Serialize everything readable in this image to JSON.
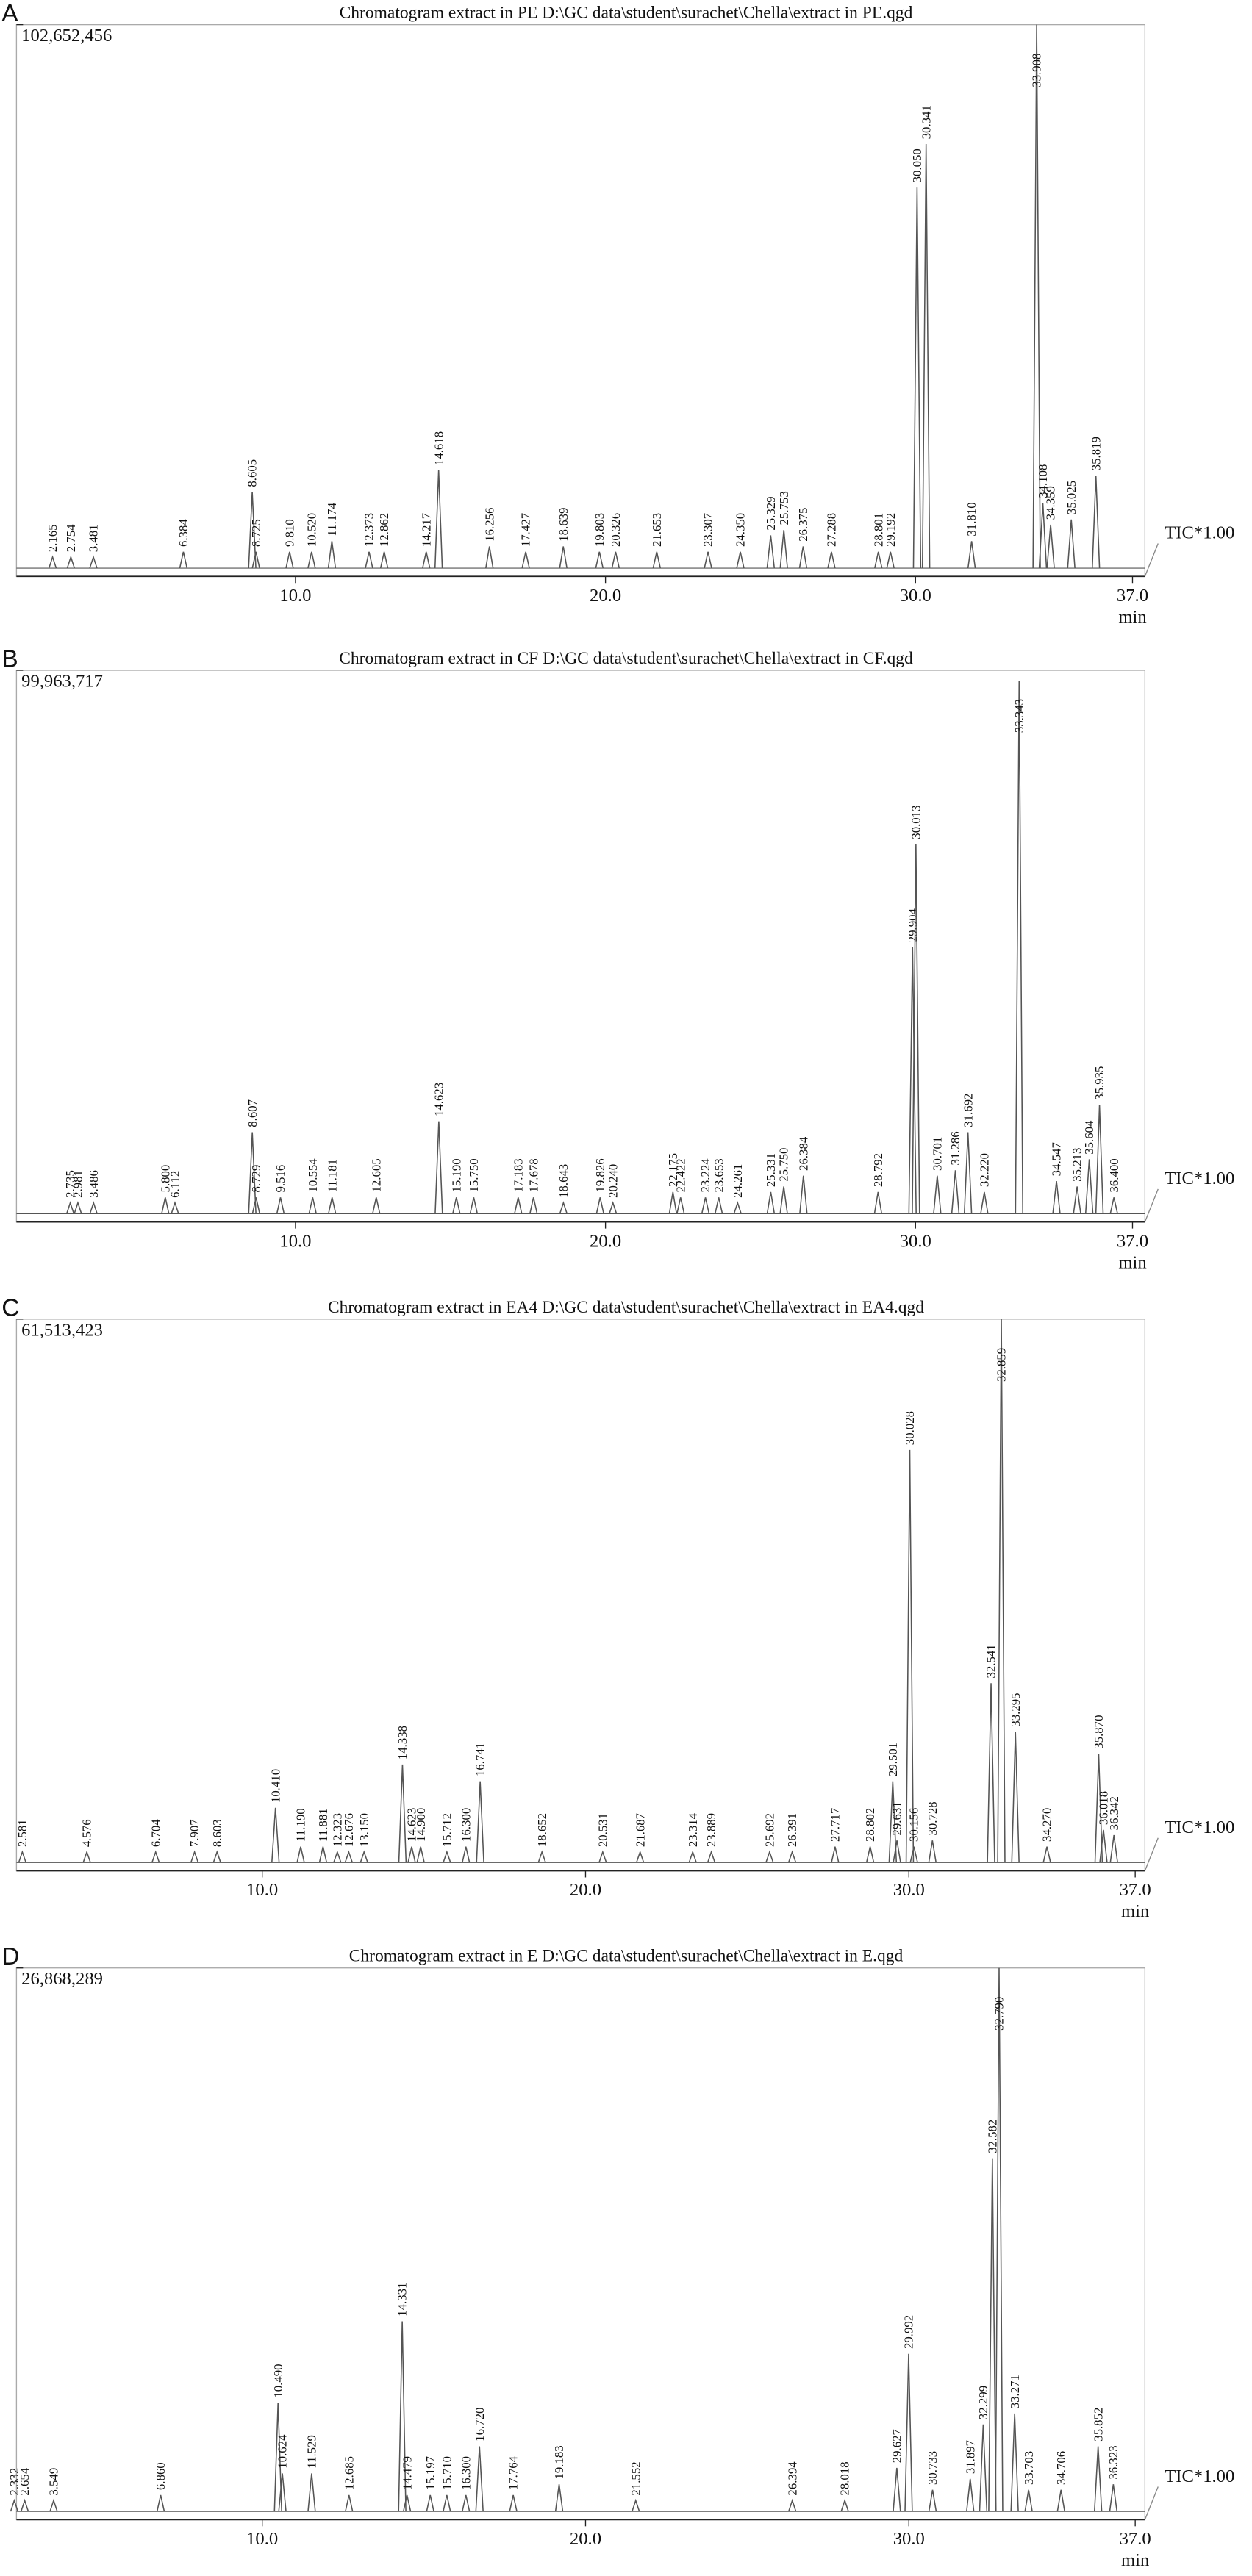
{
  "chart_data": [
    {
      "type": "chromatogram",
      "panel": "A",
      "title": "Chromatogram extract in PE D:\\GC data\\student\\surachet\\Chella\\extract in PE.qgd",
      "ylim": [
        0,
        102652456
      ],
      "yticks": [
        {
          "value": 102652456,
          "label": "102,652,456"
        }
      ],
      "xlim": [
        1,
        37.4
      ],
      "xticks": [
        {
          "value": 10,
          "label": "10.0"
        },
        {
          "value": 20,
          "label": "20.0"
        },
        {
          "value": 30,
          "label": "30.0"
        },
        {
          "value": 37,
          "label": "37.0"
        }
      ],
      "x_unit": "min",
      "trace_label": "TIC*1.00",
      "color": "#555555",
      "peaks": {
        "x": [
          2.165,
          2.754,
          3.481,
          6.384,
          8.605,
          8.725,
          9.81,
          10.52,
          11.174,
          12.373,
          12.862,
          14.217,
          14.618,
          16.256,
          17.427,
          18.639,
          19.803,
          20.326,
          21.653,
          23.307,
          24.35,
          25.329,
          25.753,
          26.375,
          27.288,
          28.801,
          29.192,
          30.05,
          30.341,
          31.81,
          33.908,
          34.108,
          34.359,
          35.025,
          35.819
        ],
        "x_labels": [
          "2.165",
          "2.754",
          "3.481",
          "6.384",
          "8.605",
          "8.725",
          "9.810",
          "10.520",
          "11.174",
          "12.373",
          "12.862",
          "14.217",
          "14.618",
          "16.256",
          "17.427",
          "18.639",
          "19.803",
          "20.326",
          "21.653",
          "23.307",
          "24.350",
          "25.329",
          "25.753",
          "26.375",
          "27.288",
          "28.801",
          "29.192",
          "30.050",
          "30.341",
          "31.810",
          "33.908",
          "34.108",
          "34.359",
          "35.025",
          "35.819"
        ],
        "values": [
          2100000,
          2100000,
          2100000,
          3100000,
          14400000,
          3100000,
          3100000,
          3100000,
          5100000,
          3100000,
          3100000,
          3100000,
          18500000,
          4100000,
          3100000,
          4100000,
          3100000,
          3100000,
          3100000,
          3100000,
          3100000,
          6200000,
          7200000,
          4100000,
          3100000,
          3100000,
          3100000,
          71900000,
          80100000,
          5100000,
          102652456,
          12300000,
          8200000,
          9200000,
          17500000
        ]
      }
    },
    {
      "type": "chromatogram",
      "panel": "B",
      "title": "Chromatogram extract in CF D:\\GC data\\student\\surachet\\Chella\\extract in CF.qgd",
      "ylim": [
        0,
        99963717
      ],
      "yticks": [
        {
          "value": 99963717,
          "label": "99,963,717"
        }
      ],
      "xlim": [
        1,
        37.4
      ],
      "xticks": [
        {
          "value": 10,
          "label": "10.0"
        },
        {
          "value": 20,
          "label": "20.0"
        },
        {
          "value": 30,
          "label": "30.0"
        },
        {
          "value": 37,
          "label": "37.0"
        }
      ],
      "x_unit": "min",
      "trace_label": "TIC*1.00",
      "color": "#555555",
      "peaks": {
        "x": [
          2.735,
          2.981,
          3.486,
          5.8,
          6.112,
          8.607,
          8.729,
          9.516,
          10.554,
          11.181,
          12.605,
          14.623,
          15.19,
          15.75,
          17.183,
          17.678,
          18.643,
          19.826,
          20.24,
          22.175,
          22.422,
          23.224,
          23.653,
          24.261,
          25.331,
          25.75,
          26.384,
          28.792,
          29.904,
          30.013,
          30.701,
          31.286,
          31.692,
          32.22,
          33.343,
          34.547,
          35.213,
          35.604,
          35.935,
          36.4
        ],
        "x_labels": [
          "2.735",
          "2.981",
          "3.486",
          "5.800",
          "6.112",
          "8.607",
          "8.729",
          "9.516",
          "10.554",
          "11.181",
          "12.605",
          "14.623",
          "15.190",
          "15.750",
          "17.183",
          "17.678",
          "18.643",
          "19.826",
          "20.240",
          "22.175",
          "22.422",
          "23.224",
          "23.653",
          "24.261",
          "25.331",
          "25.750",
          "26.384",
          "28.792",
          "29.904",
          "30.013",
          "30.701",
          "31.286",
          "31.692",
          "32.220",
          "33.343",
          "34.547",
          "35.213",
          "35.604",
          "35.935",
          "36.400"
        ],
        "values": [
          2000000,
          2000000,
          2000000,
          3000000,
          2000000,
          15000000,
          3000000,
          3000000,
          3000000,
          3000000,
          3000000,
          17000000,
          3000000,
          3000000,
          3000000,
          3000000,
          2000000,
          3000000,
          2000000,
          4000000,
          3000000,
          3000000,
          3000000,
          2000000,
          4000000,
          5000000,
          7000000,
          4000000,
          49000000,
          68000000,
          7000000,
          8000000,
          15000000,
          4000000,
          98000000,
          6000000,
          5000000,
          10000000,
          20000000,
          3000000
        ]
      }
    },
    {
      "type": "chromatogram",
      "panel": "C",
      "title": "Chromatogram extract in EA4 D:\\GC data\\student\\surachet\\Chella\\extract in EA4.qgd",
      "ylim": [
        0,
        61513423
      ],
      "yticks": [
        {
          "value": 61513423,
          "label": "61,513,423"
        }
      ],
      "xlim": [
        2.4,
        37.3
      ],
      "xticks": [
        {
          "value": 10,
          "label": "10.0"
        },
        {
          "value": 20,
          "label": "20.0"
        },
        {
          "value": 30,
          "label": "30.0"
        },
        {
          "value": 37,
          "label": "37.0"
        }
      ],
      "x_unit": "min",
      "trace_label": "TIC*1.00",
      "color": "#555555",
      "peaks": {
        "x": [
          2.581,
          4.576,
          6.704,
          7.907,
          8.603,
          10.41,
          11.19,
          11.881,
          12.323,
          12.676,
          13.15,
          14.338,
          14.623,
          14.9,
          15.712,
          16.3,
          16.741,
          18.652,
          20.531,
          21.687,
          23.314,
          23.889,
          25.692,
          26.391,
          27.717,
          28.802,
          29.501,
          29.631,
          30.028,
          30.156,
          30.728,
          32.541,
          32.859,
          33.295,
          34.27,
          35.87,
          36.018,
          36.342
        ],
        "x_labels": [
          "2.581",
          "4.576",
          "6.704",
          "7.907",
          "8.603",
          "10.410",
          "11.190",
          "11.881",
          "12.323",
          "12.676",
          "13.150",
          "14.338",
          "14.623",
          "14.900",
          "15.712",
          "16.300",
          "16.741",
          "18.652",
          "20.531",
          "21.687",
          "23.314",
          "23.889",
          "25.692",
          "26.391",
          "27.717",
          "28.802",
          "29.501",
          "29.631",
          "30.028",
          "30.156",
          "30.728",
          "32.541",
          "32.859",
          "33.295",
          "34.270",
          "35.870",
          "36.018",
          "36.342"
        ],
        "values": [
          1200000,
          1200000,
          1200000,
          1200000,
          1200000,
          6200000,
          1800000,
          1800000,
          1200000,
          1200000,
          1200000,
          11100000,
          1800000,
          1800000,
          1200000,
          1800000,
          9200000,
          1200000,
          1200000,
          1200000,
          1200000,
          1200000,
          1200000,
          1200000,
          1800000,
          1800000,
          9200000,
          2500000,
          46700000,
          1800000,
          2500000,
          20300000,
          61513423,
          14800000,
          1800000,
          12300000,
          3700000,
          3100000
        ]
      }
    },
    {
      "type": "chromatogram",
      "panel": "D",
      "title": "Chromatogram extract in E D:\\GC data\\student\\surachet\\Chella\\extract in E.qgd",
      "ylim": [
        0,
        26868289
      ],
      "yticks": [
        {
          "value": 26868289,
          "label": "26,868,289"
        }
      ],
      "xlim": [
        2.4,
        37.3
      ],
      "xticks": [
        {
          "value": 10,
          "label": "10.0"
        },
        {
          "value": 20,
          "label": "20.0"
        },
        {
          "value": 30,
          "label": "30.0"
        },
        {
          "value": 37,
          "label": "37.0"
        }
      ],
      "x_unit": "min",
      "trace_label": "TIC*1.00",
      "color": "#555555",
      "peaks": {
        "x": [
          2.332,
          2.654,
          3.549,
          6.86,
          10.49,
          10.624,
          11.529,
          12.685,
          14.331,
          14.479,
          15.197,
          15.71,
          16.3,
          16.72,
          17.764,
          19.183,
          21.552,
          26.394,
          28.018,
          29.627,
          29.992,
          30.733,
          31.897,
          32.299,
          32.582,
          32.79,
          33.271,
          33.703,
          34.706,
          35.852,
          36.323
        ],
        "x_labels": [
          "2.332",
          "2.654",
          "3.549",
          "6.860",
          "10.490",
          "10.624",
          "11.529",
          "12.685",
          "14.331",
          "14.479",
          "15.197",
          "15.710",
          "16.300",
          "16.720",
          "17.764",
          "19.183",
          "21.552",
          "26.394",
          "28.018",
          "29.627",
          "29.992",
          "30.733",
          "31.897",
          "32.299",
          "32.582",
          "32.790",
          "33.271",
          "33.703",
          "34.706",
          "35.852",
          "36.323"
        ],
        "values": [
          540000,
          540000,
          540000,
          810000,
          5370000,
          1880000,
          1880000,
          810000,
          9400000,
          810000,
          810000,
          810000,
          810000,
          3220000,
          810000,
          1340000,
          540000,
          540000,
          540000,
          2150000,
          7790000,
          1070000,
          1610000,
          4300000,
          17460000,
          26868289,
          4840000,
          1070000,
          1070000,
          3220000,
          1340000
        ]
      }
    }
  ]
}
